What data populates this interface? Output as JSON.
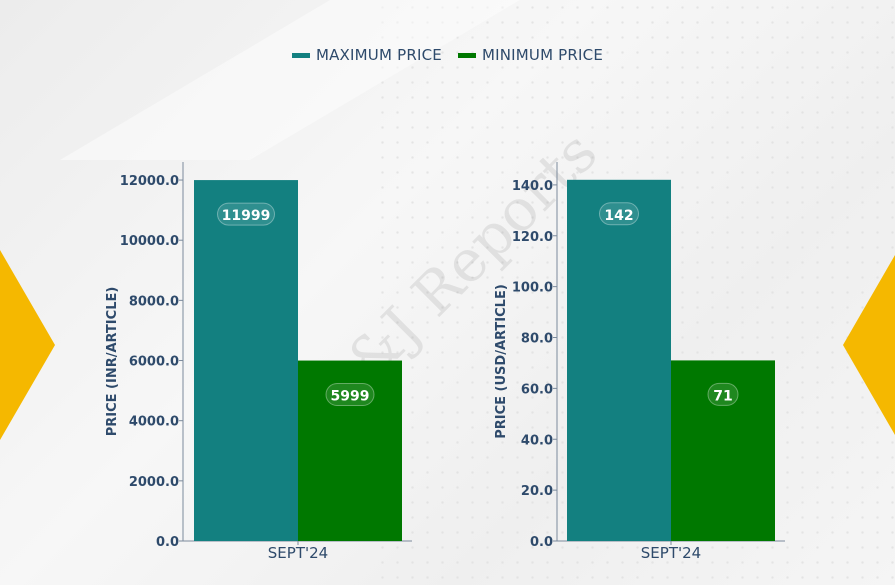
{
  "legend": {
    "max_label": "MAXIMUM PRICE",
    "min_label": "MINIMUM PRICE"
  },
  "colors": {
    "max": "#138080",
    "min": "#007800",
    "text": "#2e4a6b",
    "accent": "#f5b800"
  },
  "watermark": "D&J Reports",
  "chart_data": [
    {
      "type": "bar",
      "categories": [
        "SEPT'24"
      ],
      "series": [
        {
          "name": "MAXIMUM PRICE",
          "values": [
            11999
          ],
          "labels": [
            "11999"
          ]
        },
        {
          "name": "MINIMUM PRICE",
          "values": [
            5999
          ],
          "labels": [
            "5999"
          ]
        }
      ],
      "ylabel": "PRICE (INR/ARTICLE)",
      "ylim": [
        0,
        12600
      ],
      "yticks": [
        0,
        2000,
        4000,
        6000,
        8000,
        10000,
        12000
      ],
      "ytick_labels": [
        "0.0",
        "2000.0",
        "4000.0",
        "6000.0",
        "8000.0",
        "10000.0",
        "12000.0"
      ],
      "grid": false
    },
    {
      "type": "bar",
      "categories": [
        "SEPT'24"
      ],
      "series": [
        {
          "name": "MAXIMUM PRICE",
          "values": [
            142
          ],
          "labels": [
            "142"
          ]
        },
        {
          "name": "MINIMUM PRICE",
          "values": [
            71
          ],
          "labels": [
            "71"
          ]
        }
      ],
      "ylabel": "PRICE (USD/ARTICLE)",
      "ylim": [
        0,
        149
      ],
      "yticks": [
        0,
        20,
        40,
        60,
        80,
        100,
        120,
        140
      ],
      "ytick_labels": [
        "0.0",
        "20.0",
        "40.0",
        "60.0",
        "80.0",
        "100.0",
        "120.0",
        "140.0"
      ],
      "grid": false
    }
  ]
}
